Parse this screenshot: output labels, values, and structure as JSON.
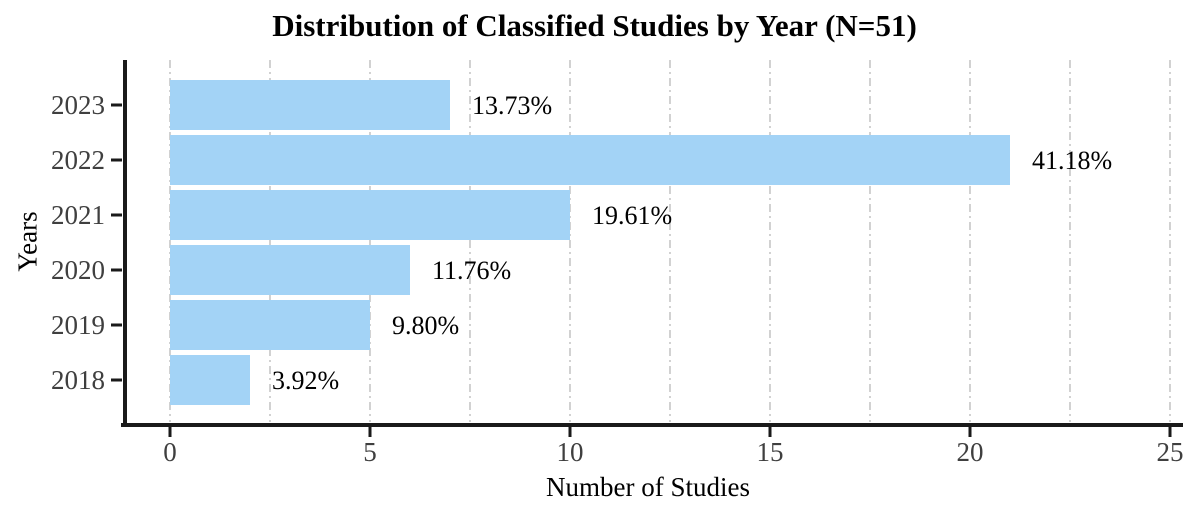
{
  "title": "Distribution of Classified Studies by Year (N=51)",
  "chart_data": {
    "type": "bar",
    "orientation": "horizontal",
    "title": "Distribution of Classified Studies by Year (N=51)",
    "n_total": 51,
    "categories": [
      "2023",
      "2022",
      "2021",
      "2020",
      "2019",
      "2018"
    ],
    "values": [
      7,
      21,
      10,
      6,
      5,
      2
    ],
    "bar_labels": [
      "13.73%",
      "41.18%",
      "19.61%",
      "11.76%",
      "9.80%",
      "3.92%"
    ],
    "xlabel": "Number of Studies",
    "ylabel": "Years",
    "xlim": [
      0,
      25
    ],
    "xticks": [
      0,
      5,
      10,
      15,
      20,
      25
    ],
    "grid_step": 2.5,
    "grid": true,
    "legend": false,
    "colors": {
      "bar": "#A3D3F6",
      "grid": "#C6C6C6",
      "axis": "#1A1A1A",
      "tick_label": "#3F3F3F",
      "bar_label": "#000000",
      "background": "#FFFFFF"
    }
  }
}
